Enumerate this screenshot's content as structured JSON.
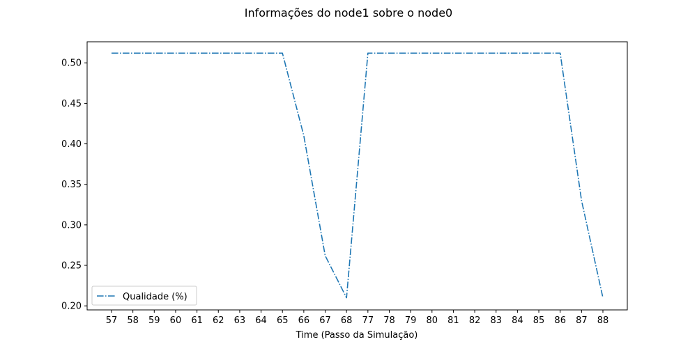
{
  "chart_data": {
    "type": "line",
    "title": "Informações do node1 sobre o node0",
    "xlabel": "Time (Passo da Simulação)",
    "ylabel": "",
    "x": [
      57,
      58,
      59,
      60,
      61,
      62,
      63,
      64,
      65,
      66,
      67,
      68,
      77,
      78,
      79,
      80,
      81,
      82,
      83,
      84,
      85,
      86,
      87,
      88
    ],
    "yticks": [
      0.2,
      0.25,
      0.3,
      0.35,
      0.4,
      0.45,
      0.5
    ],
    "ylim": [
      0.195,
      0.526
    ],
    "grid": false,
    "legend_position": "lower-left",
    "series": [
      {
        "name": "Qualidade (%)",
        "color": "#1f77b4",
        "line_style": "dash-dot",
        "values": [
          0.512,
          0.512,
          0.512,
          0.512,
          0.512,
          0.512,
          0.512,
          0.512,
          0.512,
          0.41,
          0.262,
          0.21,
          0.512,
          0.512,
          0.512,
          0.512,
          0.512,
          0.512,
          0.512,
          0.512,
          0.512,
          0.512,
          0.33,
          0.21
        ]
      }
    ]
  }
}
